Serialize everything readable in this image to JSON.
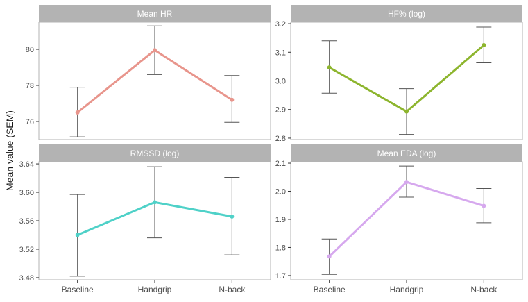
{
  "figure": {
    "ylabel": "Mean value (SEM)",
    "x_categories": [
      "Baseline",
      "Handgrip",
      "N-back"
    ]
  },
  "chart_data": [
    {
      "type": "line",
      "title": "Mean HR",
      "categories": [
        "Baseline",
        "Handgrip",
        "N-back"
      ],
      "values": [
        76.5,
        79.95,
        77.2
      ],
      "error_low": [
        75.15,
        78.6,
        75.95
      ],
      "error_high": [
        77.9,
        81.3,
        78.55
      ],
      "ylim": [
        75.0,
        81.5
      ],
      "yticks": [
        76,
        78,
        80
      ],
      "ytick_labels": [
        "76",
        "78",
        "80"
      ],
      "color": "#e8958c"
    },
    {
      "type": "line",
      "title": "HF% (log)",
      "categories": [
        "Baseline",
        "Handgrip",
        "N-back"
      ],
      "values": [
        3.047,
        2.893,
        3.125
      ],
      "error_low": [
        2.957,
        2.813,
        3.063
      ],
      "error_high": [
        3.14,
        2.973,
        3.188
      ],
      "ylim": [
        2.795,
        3.205
      ],
      "yticks": [
        2.8,
        2.9,
        3.0,
        3.1,
        3.2
      ],
      "ytick_labels": [
        "2.8",
        "2.9",
        "3.0",
        "3.1",
        "3.2"
      ],
      "color": "#8db52e"
    },
    {
      "type": "line",
      "title": "RMSSD (log)",
      "categories": [
        "Baseline",
        "Handgrip",
        "N-back"
      ],
      "values": [
        3.54,
        3.586,
        3.566
      ],
      "error_low": [
        3.482,
        3.536,
        3.512
      ],
      "error_high": [
        3.597,
        3.636,
        3.621
      ],
      "ylim": [
        3.477,
        3.643
      ],
      "yticks": [
        3.48,
        3.52,
        3.56,
        3.6,
        3.64
      ],
      "ytick_labels": [
        "3.48",
        "3.52",
        "3.56",
        "3.60",
        "3.64"
      ],
      "color": "#4fd1c8"
    },
    {
      "type": "line",
      "title": "Mean EDA (log)",
      "categories": [
        "Baseline",
        "Handgrip",
        "N-back"
      ],
      "values": [
        1.768,
        2.033,
        1.948
      ],
      "error_low": [
        1.704,
        1.979,
        1.888
      ],
      "error_high": [
        1.83,
        2.09,
        2.01
      ],
      "ylim": [
        1.685,
        2.105
      ],
      "yticks": [
        1.7,
        1.8,
        1.9,
        2.0,
        2.1
      ],
      "ytick_labels": [
        "1.7",
        "1.8",
        "1.9",
        "2.0",
        "2.1"
      ],
      "color": "#d6a8ee"
    }
  ],
  "style": {
    "strip_background": "#b3b3b3",
    "strip_text": "#ffffff",
    "panel_border": "#b3b3b3",
    "errorbar": "#555555",
    "axis_text": "#4d4d4d",
    "title_text": "#1a1a1a"
  }
}
